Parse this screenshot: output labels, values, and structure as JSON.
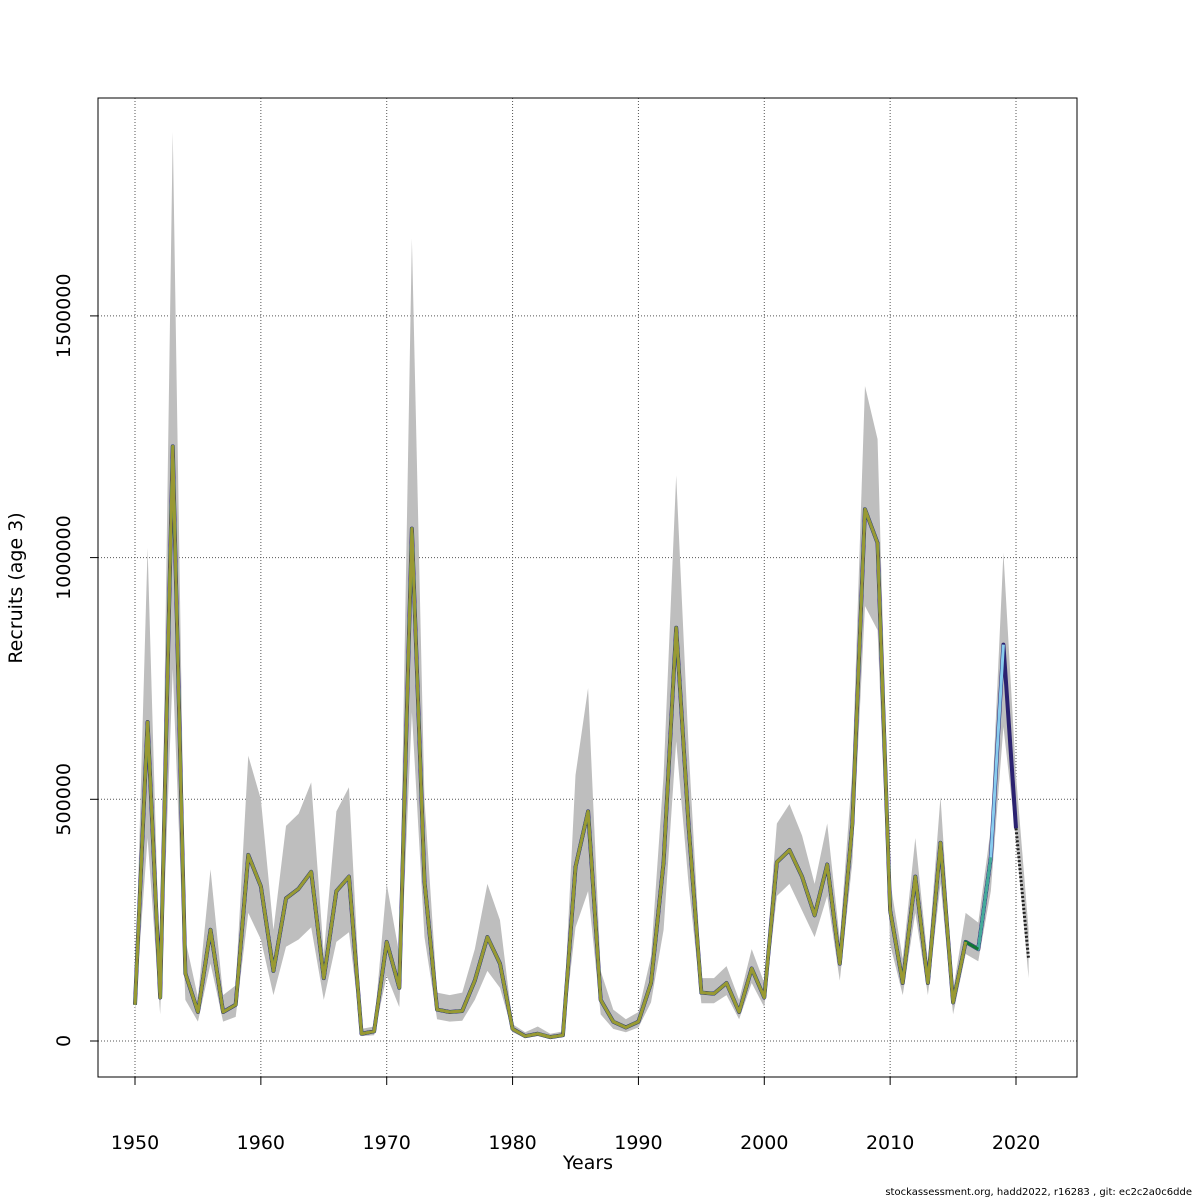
{
  "chart_data": {
    "type": "line",
    "title": "",
    "xlabel": "Years",
    "ylabel": "Recruits (age 3)",
    "xlim": [
      1947,
      2025
    ],
    "ylim": [
      -75000,
      2025000
    ],
    "x_ticks": [
      1950,
      1960,
      1970,
      1980,
      1990,
      2000,
      2010,
      2020
    ],
    "x_tick_labels": [
      "1950",
      "1960",
      "1970",
      "1980",
      "1990",
      "2000",
      "2010",
      "2020"
    ],
    "y_ticks": [
      0,
      500000,
      1000000,
      1500000
    ],
    "y_tick_labels": [
      "0",
      "500000",
      "1000000",
      "1500000"
    ],
    "grid": true,
    "x": [
      1950,
      1951,
      1952,
      1953,
      1954,
      1955,
      1956,
      1957,
      1958,
      1959,
      1960,
      1961,
      1962,
      1963,
      1964,
      1965,
      1966,
      1967,
      1968,
      1969,
      1970,
      1971,
      1972,
      1973,
      1974,
      1975,
      1976,
      1977,
      1978,
      1979,
      1980,
      1981,
      1982,
      1983,
      1984,
      1985,
      1986,
      1987,
      1988,
      1989,
      1990,
      1991,
      1992,
      1993,
      1994,
      1995,
      1996,
      1997,
      1998,
      1999,
      2000,
      2001,
      2002,
      2003,
      2004,
      2005,
      2006,
      2007,
      2008,
      2009,
      2010,
      2011,
      2012,
      2013,
      2014,
      2015,
      2016,
      2017,
      2018,
      2019,
      2020,
      2021
    ],
    "estimate": [
      75000,
      660000,
      90000,
      1230000,
      140000,
      60000,
      230000,
      60000,
      75000,
      385000,
      320000,
      145000,
      295000,
      315000,
      350000,
      130000,
      310000,
      340000,
      15000,
      20000,
      205000,
      110000,
      1060000,
      330000,
      65000,
      60000,
      62000,
      125000,
      215000,
      160000,
      25000,
      10000,
      15000,
      8000,
      12000,
      360000,
      475000,
      85000,
      40000,
      28000,
      40000,
      120000,
      370000,
      855000,
      440000,
      100000,
      98000,
      120000,
      60000,
      150000,
      90000,
      370000,
      395000,
      340000,
      260000,
      365000,
      160000,
      450000,
      1100000,
      1030000,
      270000,
      120000,
      340000,
      120000,
      410000,
      80000,
      205000,
      190000,
      380000,
      820000,
      440000,
      170000
    ],
    "upper": [
      95000,
      1020000,
      110000,
      1880000,
      210000,
      90000,
      355000,
      95000,
      115000,
      590000,
      500000,
      230000,
      445000,
      470000,
      535000,
      180000,
      475000,
      525000,
      25000,
      30000,
      325000,
      180000,
      1660000,
      500000,
      100000,
      95000,
      100000,
      190000,
      325000,
      250000,
      35000,
      18000,
      30000,
      15000,
      20000,
      550000,
      730000,
      145000,
      65000,
      45000,
      60000,
      175000,
      550000,
      1170000,
      600000,
      130000,
      130000,
      155000,
      85000,
      190000,
      120000,
      450000,
      490000,
      425000,
      325000,
      450000,
      210000,
      560000,
      1355000,
      1245000,
      330000,
      170000,
      420000,
      165000,
      505000,
      105000,
      265000,
      245000,
      440000,
      1010000,
      550000,
      230000
    ],
    "lower": [
      60000,
      420000,
      55000,
      770000,
      85000,
      40000,
      160000,
      40000,
      50000,
      265000,
      210000,
      95000,
      195000,
      210000,
      235000,
      85000,
      205000,
      225000,
      10000,
      12000,
      135000,
      70000,
      680000,
      215000,
      45000,
      40000,
      42000,
      85000,
      145000,
      110000,
      18000,
      6000,
      10000,
      4000,
      8000,
      235000,
      310000,
      55000,
      25000,
      18000,
      28000,
      80000,
      230000,
      620000,
      320000,
      78000,
      78000,
      95000,
      45000,
      120000,
      70000,
      300000,
      325000,
      270000,
      215000,
      300000,
      125000,
      370000,
      900000,
      850000,
      200000,
      95000,
      265000,
      95000,
      325000,
      55000,
      180000,
      165000,
      310000,
      650000,
      420000,
      130000
    ],
    "forecast_from": 2020,
    "band_color": "#bebebe",
    "retro_peels": [
      {
        "last_year": 2020,
        "color": "#2b2270"
      },
      {
        "last_year": 2019,
        "color": "#88ccee"
      },
      {
        "last_year": 2018,
        "color": "#44aa99"
      },
      {
        "last_year": 2017,
        "color": "#117733"
      },
      {
        "last_year": 2016,
        "color": "#999933"
      }
    ]
  },
  "footer": "stockassessment.org, hadd2022, r16283 , git: ec2c2a0c6dde"
}
